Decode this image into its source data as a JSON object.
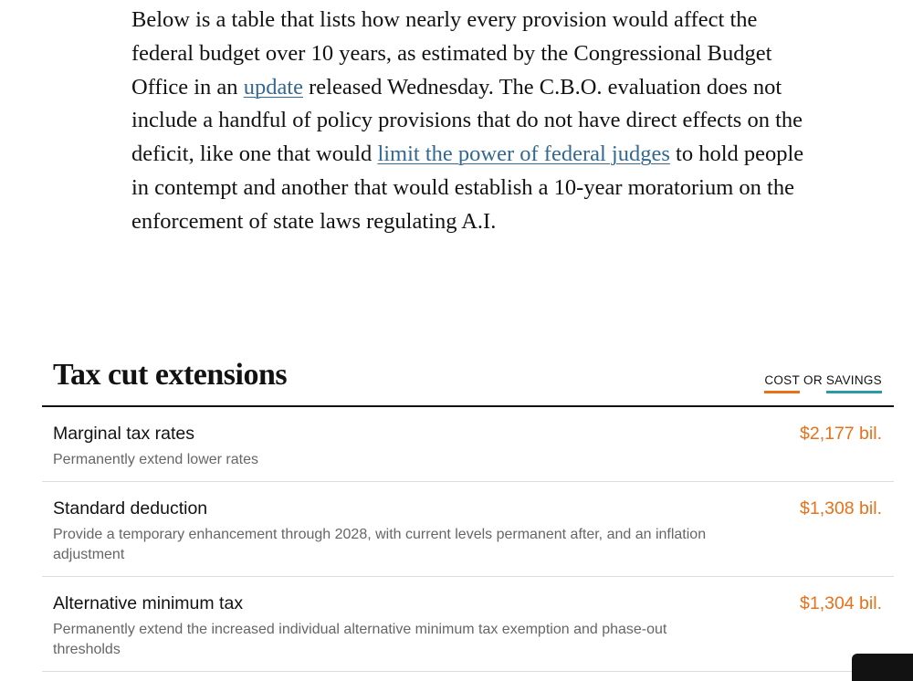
{
  "colors": {
    "cost": "#e8711a",
    "savings": "#2b9aa8",
    "link": "#326891"
  },
  "article": {
    "p1": "Below is a table that lists how nearly every provision would affect the federal budget over 10 years, as estimated by the Congressional Budget Office in an ",
    "link1": "update",
    "p2": " released Wednesday. The C.B.O. evaluation does not include a handful of policy provisions that do not have direct effects on the deficit, like one that would ",
    "link2": "limit the power of federal judges",
    "p3": " to hold people in contempt and another that would establish a 10-year moratorium on the enforcement of state laws regulating A.I."
  },
  "section": {
    "title": "Tax cut extensions",
    "legend": {
      "cost": "COST",
      "or": "OR",
      "savings": "SAVINGS"
    },
    "rows": [
      {
        "title": "Marginal tax rates",
        "description": "Permanently extend lower rates",
        "value": "$2,177 bil."
      },
      {
        "title": "Standard deduction",
        "description": "Provide a temporary enhancement through 2028, with current levels permanent after, and an inflation adjustment",
        "value": "$1,308 bil."
      },
      {
        "title": "Alternative minimum tax",
        "description": "Permanently extend the increased individual alternative minimum tax exemption and phase-out thresholds",
        "value": "$1,304 bil."
      }
    ]
  }
}
